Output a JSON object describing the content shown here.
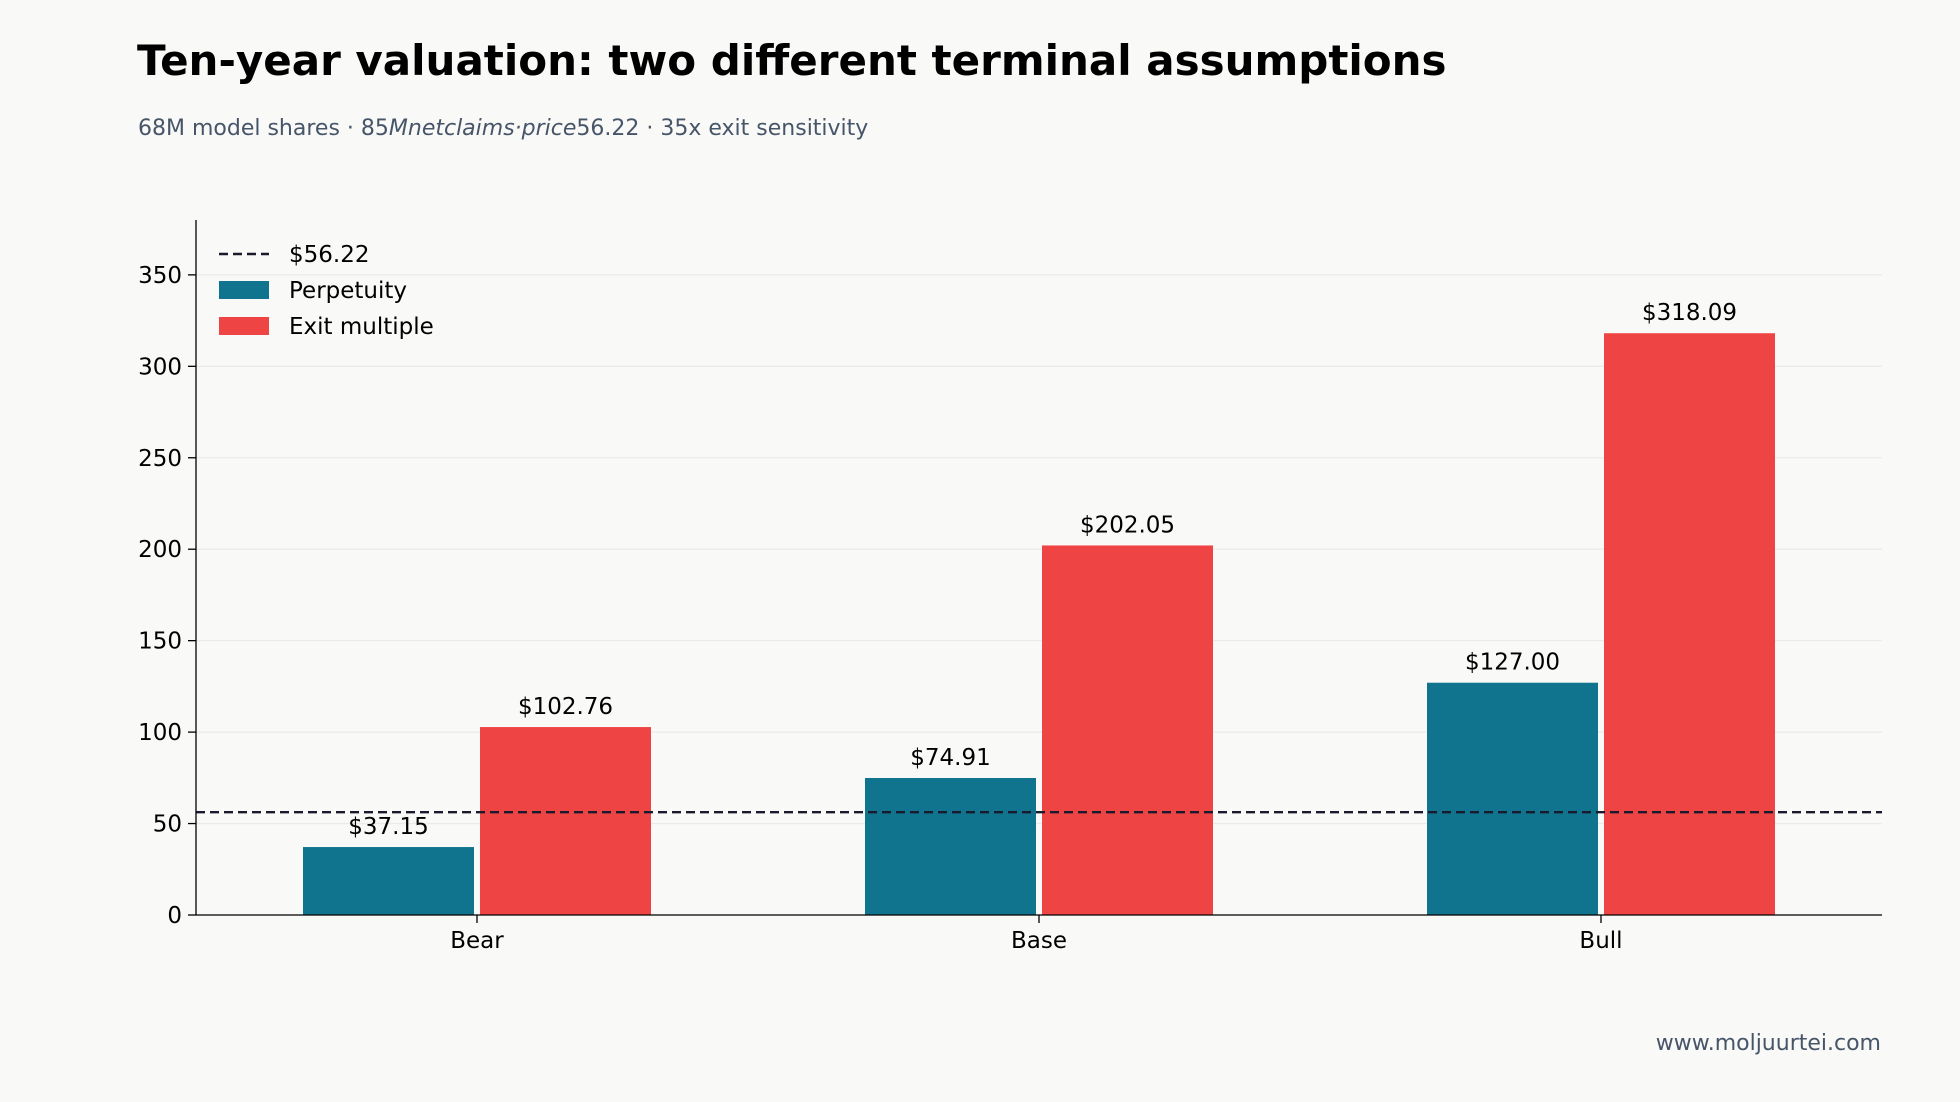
{
  "title": "Ten-year valuation: two different terminal assumptions",
  "subtitle": {
    "part1": "68M model shares · 85",
    "part2": "Mnetclaims·price",
    "part3": "56.22 · 35x exit sensitivity"
  },
  "footer": "www.moljuurtei.com",
  "colors": {
    "perpetuity": "#10748f",
    "exit_multiple": "#ef4444",
    "reference": "#1a1a2e",
    "grid": "#ebebeb"
  },
  "chart_data": {
    "type": "bar",
    "categories": [
      "Bear",
      "Base",
      "Bull"
    ],
    "series": [
      {
        "name": "Perpetuity",
        "values": [
          37.15,
          74.91,
          127.0
        ],
        "labels": [
          "$37.15",
          "$74.91",
          "$127.00"
        ]
      },
      {
        "name": "Exit multiple",
        "values": [
          102.76,
          202.05,
          318.09
        ],
        "labels": [
          "$102.76",
          "$202.05",
          "$318.09"
        ]
      }
    ],
    "reference_line": {
      "value": 56.22,
      "label": "$56.22",
      "style": "dashed"
    },
    "ylim": [
      0,
      380
    ],
    "yticks": [
      0,
      50,
      100,
      150,
      200,
      250,
      300,
      350
    ],
    "grid": "horizontal",
    "legend_position": "top-left",
    "xlabel": "",
    "ylabel": ""
  }
}
